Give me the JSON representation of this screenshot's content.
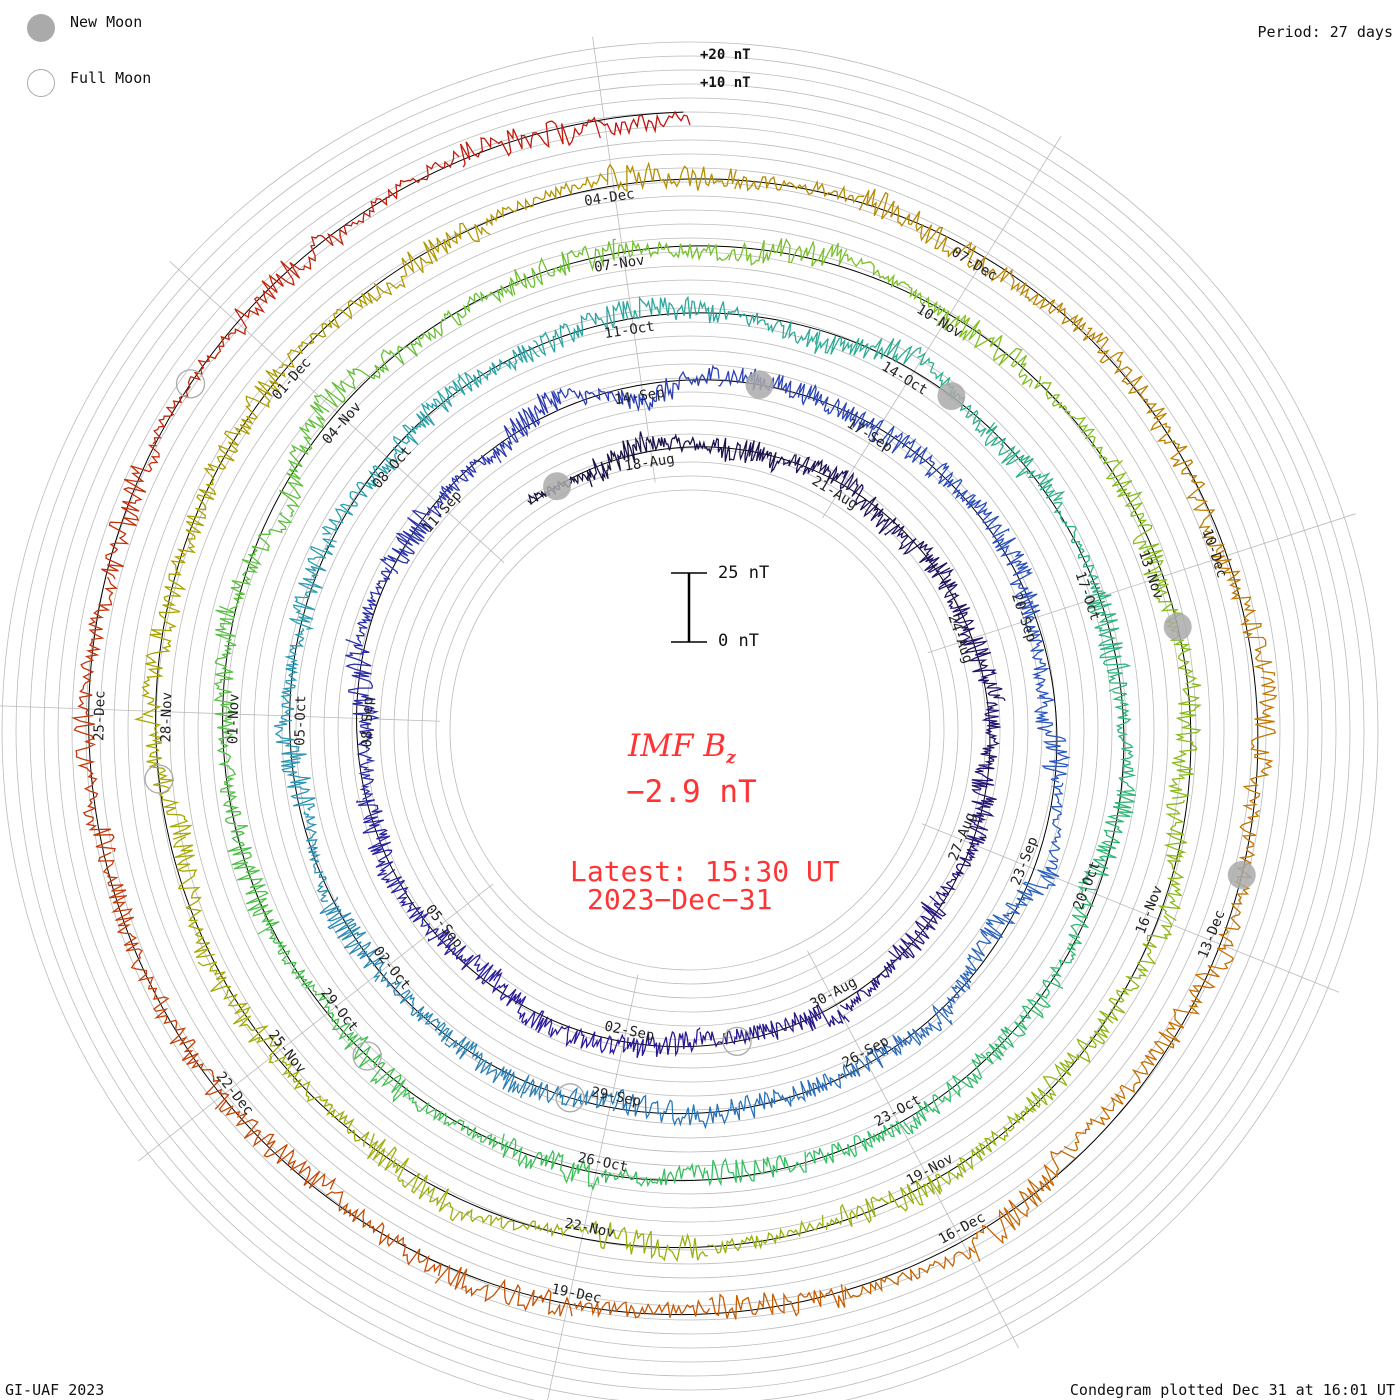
{
  "legend": {
    "new_moon": "New Moon",
    "full_moon": "Full Moon"
  },
  "period_label": "Period: 27 days",
  "footer_left": "GI-UAF 2023",
  "footer_right": "Condegram plotted Dec 31 at 16:01 UT",
  "scale_bar": {
    "top": "25 nT",
    "bottom": "0 nT"
  },
  "ring_labels": [
    "+20 nT",
    "+10 nT"
  ],
  "center": {
    "title": "IMF B",
    "subscript": "z",
    "value": "−2.9 nT",
    "latest": "Latest: 15:30 UT",
    "date": "2023−Dec−31"
  },
  "colors": {
    "accent": "#ff3333",
    "new_moon": "#aaaaaa",
    "grid": "#bbbbbb",
    "zero_line": "#000000"
  },
  "chart_data": {
    "type": "line",
    "title": "IMF Bz condegram",
    "period_days": 27,
    "start_date": "2023-08-16",
    "end": "2023-12-31 15:30 UT",
    "units": "nT",
    "latest_value": -2.9,
    "daily_bz": [
      1,
      -2,
      3,
      0,
      -1,
      2,
      -3,
      1,
      0,
      2,
      -1,
      1,
      -2,
      0,
      3,
      -1,
      -2,
      1,
      4,
      -3,
      0,
      2,
      -1,
      -4,
      3,
      1,
      0,
      -2,
      5,
      -6,
      2,
      1,
      -1,
      0,
      3,
      -2,
      -4,
      1,
      6,
      -5,
      2,
      0,
      -1,
      1,
      -3,
      2,
      0,
      -1,
      2,
      -3,
      1,
      0,
      2,
      -2,
      1,
      -1,
      3,
      0,
      -4,
      5,
      -2,
      1,
      0,
      -1,
      2,
      -3,
      1,
      0,
      2,
      -1,
      -3,
      1,
      0,
      2,
      -2,
      1,
      0,
      -1,
      3,
      -5,
      6,
      -2,
      0,
      1,
      -3,
      4,
      -1,
      0,
      2,
      -2,
      1,
      -4,
      3,
      0,
      -1,
      2,
      -2,
      1,
      -3,
      4,
      -1,
      0,
      2,
      -5,
      3,
      -1,
      0,
      1,
      -2,
      0,
      3,
      -1,
      2,
      -3,
      1,
      0,
      -2,
      4,
      -1,
      2,
      -3,
      -4,
      5,
      1,
      -2,
      0,
      3,
      -3,
      1,
      0,
      -1,
      2,
      -2,
      1,
      0,
      -1,
      2,
      -3
    ],
    "color_stops": [
      "#1a1040",
      "#2a1a9a",
      "#2a50c0",
      "#2aa0b0",
      "#30c060",
      "#80c020",
      "#a8a800",
      "#c86a00",
      "#c01010"
    ],
    "date_labels": [
      "18-Aug",
      "21-Aug",
      "24-Aug",
      "27-Aug",
      "30-Aug",
      "02-Sep",
      "05-Sep",
      "08-Sep",
      "11-Sep",
      "14-Sep",
      "17-Sep",
      "20-Sep",
      "23-Sep",
      "26-Sep",
      "29-Sep",
      "02-Oct",
      "05-Oct",
      "08-Oct",
      "11-Oct",
      "14-Oct",
      "17-Oct",
      "20-Oct",
      "23-Oct",
      "26-Oct",
      "29-Oct",
      "01-Nov",
      "04-Nov",
      "07-Nov",
      "10-Nov",
      "13-Nov",
      "16-Nov",
      "19-Nov",
      "22-Nov",
      "25-Nov",
      "28-Nov",
      "01-Dec",
      "04-Dec",
      "07-Dec",
      "10-Dec",
      "13-Dec",
      "16-Dec",
      "19-Dec",
      "22-Dec",
      "25-Dec"
    ],
    "new_moons": [
      "2023-08-16",
      "2023-09-15",
      "2023-10-14",
      "2023-11-13",
      "2023-12-12"
    ],
    "full_moons": [
      "2023-08-31",
      "2023-09-29",
      "2023-10-28",
      "2023-11-27",
      "2023-12-27"
    ]
  }
}
